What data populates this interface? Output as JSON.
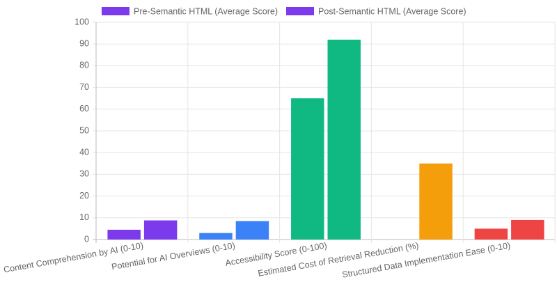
{
  "chart_data": {
    "type": "bar",
    "categories": [
      "Content Comprehension by AI (0-10)",
      "Potential for AI Overviews (0-10)",
      "Accessibility Score (0-100)",
      "Estimated Cost of Retrieval Reduction (%)",
      "Structured Data Implementation Ease (0-10)"
    ],
    "category_colors": [
      "#7c3aed",
      "#3b82f6",
      "#10b981",
      "#f59e0b",
      "#ef4444"
    ],
    "series": [
      {
        "name": "Pre-Semantic HTML (Average Score)",
        "color": "#7c3aed",
        "values": [
          4.5,
          3,
          65,
          null,
          5
        ]
      },
      {
        "name": "Post-Semantic HTML (Average Score)",
        "color": "#7c3aed",
        "values": [
          8.8,
          8.5,
          92,
          35,
          9
        ]
      }
    ],
    "ylim": [
      0,
      100
    ],
    "yticks": [
      0,
      10,
      20,
      30,
      40,
      50,
      60,
      70,
      80,
      90,
      100
    ],
    "grid": true,
    "legend": "top"
  }
}
